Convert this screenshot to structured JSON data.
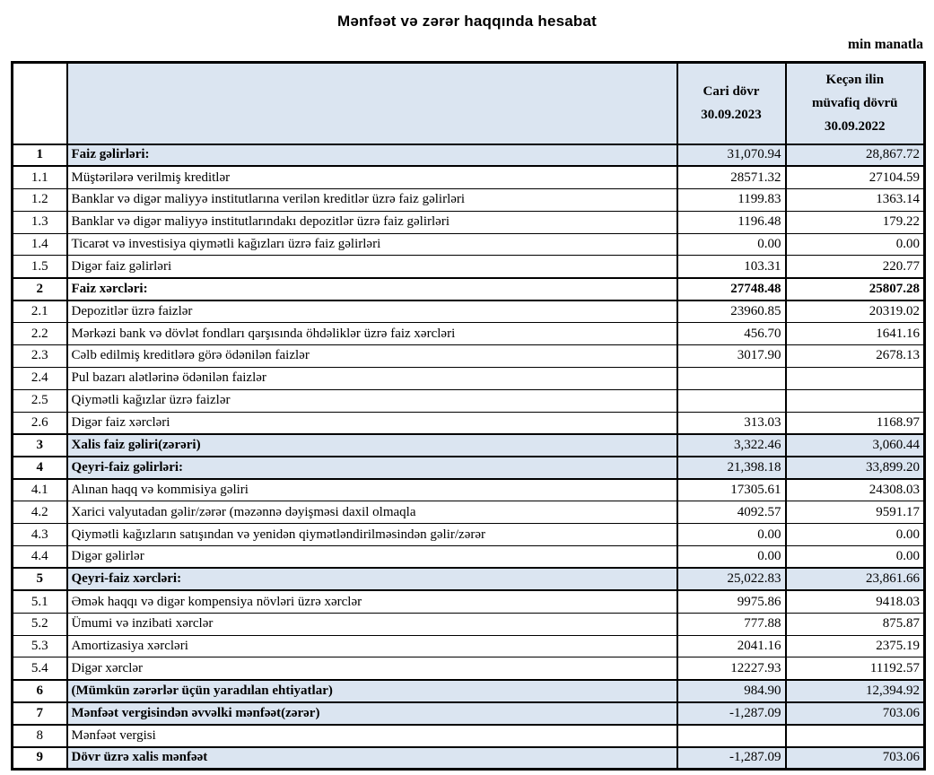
{
  "title": "Mənfəət və zərər haqqında hesabat",
  "unit_note": "min manatla",
  "colors": {
    "highlight_row_bg": "#dbe5f1",
    "border": "#000000"
  },
  "table": {
    "header": {
      "current_period": [
        "Cari dövr",
        "30.09.2023"
      ],
      "prior_period": [
        "Keçən ilin",
        "müvafiq dövrü",
        "30.09.2022"
      ]
    },
    "rows": [
      {
        "no": "1",
        "label": "Faiz gəlirləri:",
        "current": "31,070.94",
        "previous": "28,867.72"
      },
      {
        "no": "1.1",
        "label": "Müştərilərə verilmiş kreditlər",
        "current": "28571.32",
        "previous": "27104.59"
      },
      {
        "no": "1.2",
        "label": "Banklar və digər maliyyə institutlarına verilən kreditlər üzrə faiz gəlirləri",
        "current": "1199.83",
        "previous": "1363.14"
      },
      {
        "no": "1.3",
        "label": "Banklar və digər maliyyə institutlarındakı depozitlər üzrə faiz gəlirləri",
        "current": "1196.48",
        "previous": "179.22"
      },
      {
        "no": "1.4",
        "label": "Ticarət və investisiya qiymətli kağızları üzrə faiz gəlirləri",
        "current": "0.00",
        "previous": "0.00"
      },
      {
        "no": "1.5",
        "label": "Digər faiz gəlirləri",
        "current": "103.31",
        "previous": "220.77"
      },
      {
        "no": "2",
        "label": "Faiz xərcləri:",
        "current": "27748.48",
        "previous": "25807.28"
      },
      {
        "no": "2.1",
        "label": "Depozitlər üzrə faizlər",
        "current": "23960.85",
        "previous": "20319.02"
      },
      {
        "no": "2.2",
        "label": "Mərkəzi bank və dövlət fondları qarşısında öhdəliklər üzrə faiz xərcləri",
        "current": "456.70",
        "previous": "1641.16"
      },
      {
        "no": "2.3",
        "label": "Cəlb edilmiş kreditlərə görə ödənilən faizlər",
        "current": "3017.90",
        "previous": "2678.13"
      },
      {
        "no": "2.4",
        "label": "Pul bazarı alətlərinə ödənilən faizlər",
        "current": "",
        "previous": ""
      },
      {
        "no": "2.5",
        "label": "Qiymətli kağızlar üzrə faizlər",
        "current": "",
        "previous": ""
      },
      {
        "no": "2.6",
        "label": "Digər faiz xərcləri",
        "current": "313.03",
        "previous": "1168.97"
      },
      {
        "no": "3",
        "label": "Xalis faiz gəliri(zərəri)",
        "current": "3,322.46",
        "previous": "3,060.44"
      },
      {
        "no": "4",
        "label": "Qeyri-faiz gəlirləri:",
        "current": "21,398.18",
        "previous": "33,899.20"
      },
      {
        "no": "4.1",
        "label": "Alınan haqq və kommisiya gəliri",
        "current": "17305.61",
        "previous": "24308.03"
      },
      {
        "no": "4.2",
        "label": "Xarici valyutadan gəlir/zərər (məzənnə dəyişməsi daxil olmaqla",
        "current": "4092.57",
        "previous": "9591.17"
      },
      {
        "no": "4.3",
        "label": "Qiymətli kağızların satışından və yenidən qiymətləndirilməsindən gəlir/zərər",
        "current": "0.00",
        "previous": "0.00"
      },
      {
        "no": "4.4",
        "label": "Digər gəlirlər",
        "current": "0.00",
        "previous": "0.00"
      },
      {
        "no": "5",
        "label": "Qeyri-faiz xərcləri:",
        "current": "25,022.83",
        "previous": "23,861.66"
      },
      {
        "no": "5.1",
        "label": "Əmək haqqı və digər kompensiya növləri üzrə xərclər",
        "current": "9975.86",
        "previous": "9418.03"
      },
      {
        "no": "5.2",
        "label": "Ümumi və inzibati xərclər",
        "current": "777.88",
        "previous": "875.87"
      },
      {
        "no": "5.3",
        "label": "Amortizasiya xərcləri",
        "current": "2041.16",
        "previous": "2375.19"
      },
      {
        "no": "5.4",
        "label": "Digər xərclər",
        "current": "12227.93",
        "previous": "11192.57"
      },
      {
        "no": "6",
        "label": "(Mümkün zərərlər üçün yaradılan ehtiyatlar)",
        "current": "984.90",
        "previous": "12,394.92"
      },
      {
        "no": "7",
        "label": "Mənfəət vergisindən əvvəlki mənfəət(zərər)",
        "current": "-1,287.09",
        "previous": "703.06"
      },
      {
        "no": "8",
        "label": "Mənfəət vergisi",
        "current": "",
        "previous": ""
      },
      {
        "no": "9",
        "label": "Dövr üzrə xalis mənfəət",
        "current": "-1,287.09",
        "previous": "703.06"
      }
    ]
  }
}
